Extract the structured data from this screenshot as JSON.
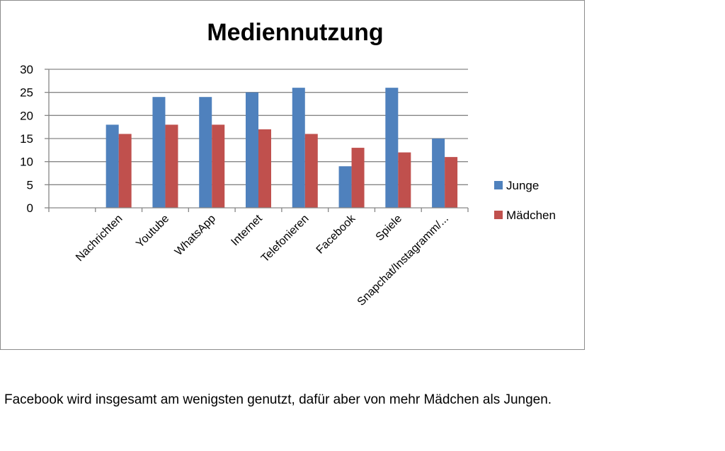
{
  "chart_data": {
    "type": "bar",
    "title": "Mediennutzung",
    "xlabel": "",
    "ylabel": "",
    "categories": [
      "Nachrichten",
      "Youtube",
      "WhatsApp",
      "Internet",
      "Telefonieren",
      "Facebook",
      "Spiele",
      "Snapchat/Instagramm/..."
    ],
    "series": [
      {
        "name": "Junge",
        "values": [
          18,
          24,
          24,
          25,
          26,
          9,
          26,
          15
        ]
      },
      {
        "name": "Mädchen",
        "values": [
          16,
          18,
          18,
          17,
          16,
          13,
          12,
          11
        ]
      }
    ],
    "ylim": [
      0,
      30
    ],
    "yticks": [
      0,
      5,
      10,
      15,
      20,
      25,
      30
    ],
    "grid": true,
    "legend": "right",
    "colors": {
      "Junge": "#4f81bd",
      "Mädchen": "#c0504d",
      "grid": "#868686",
      "axis": "#868686"
    }
  },
  "caption": "Facebook wird insgesamt am wenigsten genutzt, dafür aber von mehr Mädchen als Jungen."
}
